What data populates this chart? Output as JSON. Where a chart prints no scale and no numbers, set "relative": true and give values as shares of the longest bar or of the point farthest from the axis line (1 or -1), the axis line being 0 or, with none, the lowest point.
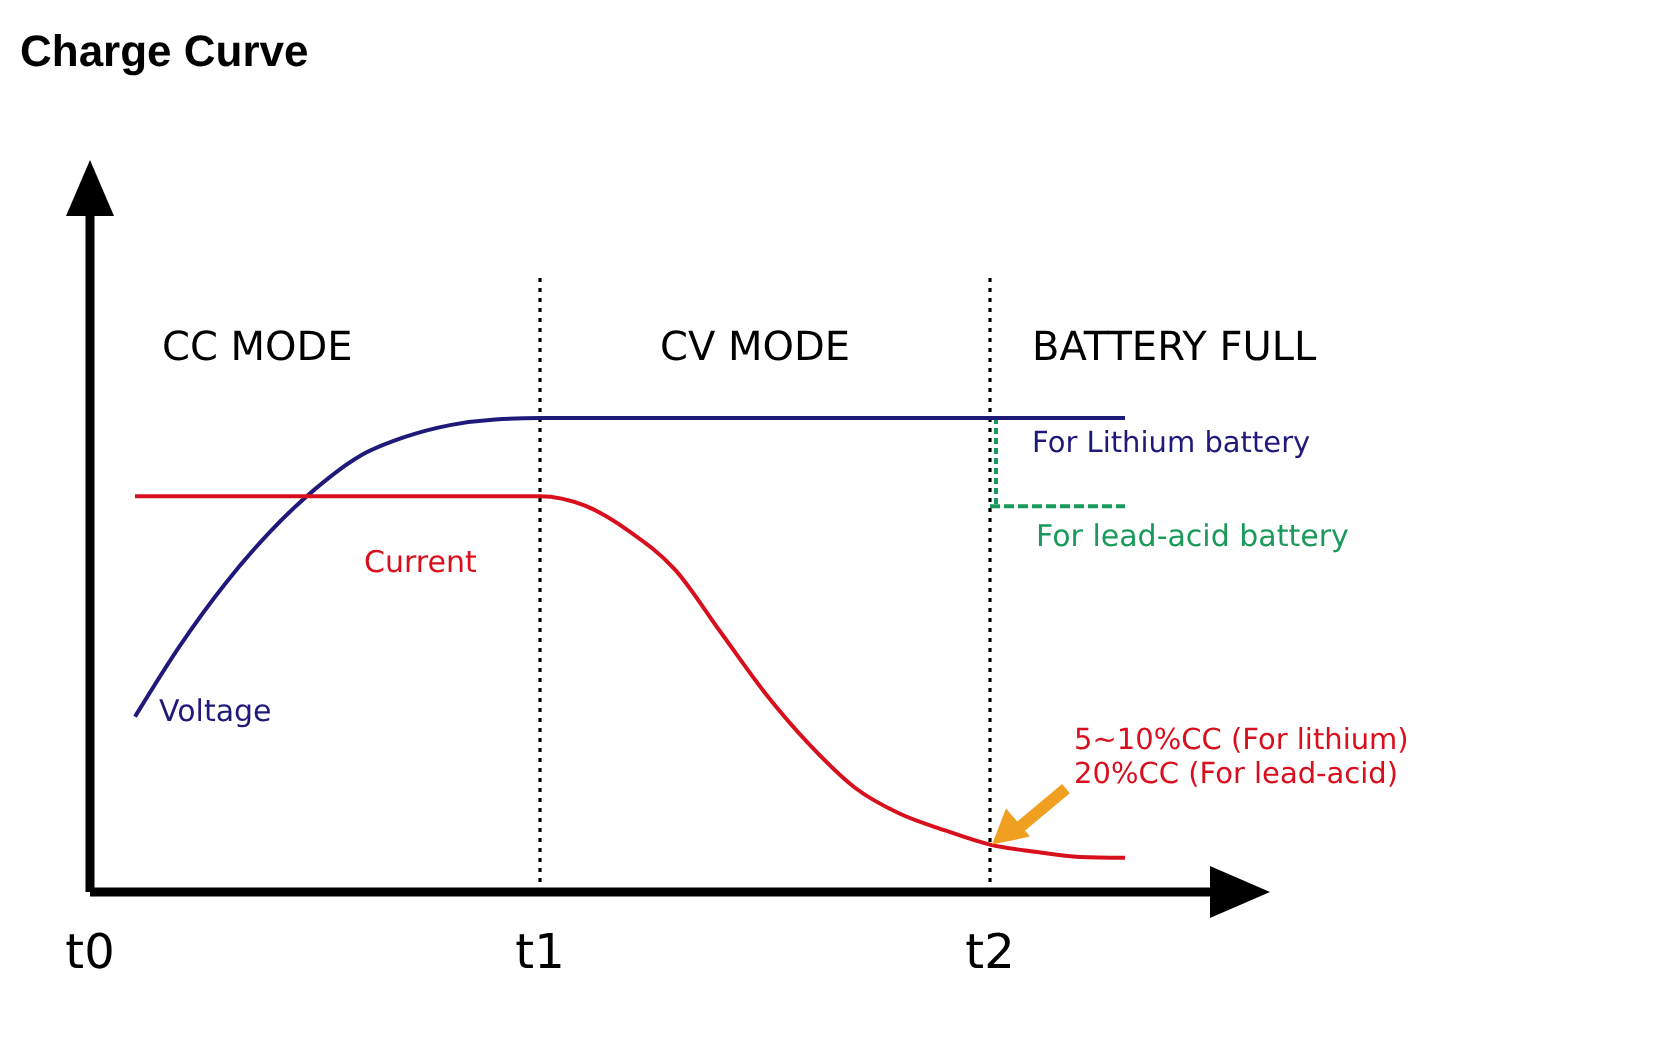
{
  "chart_data": {
    "type": "line",
    "title": "Charge Curve",
    "relative": true,
    "categories": [
      "t0",
      null,
      null,
      null,
      null,
      null,
      null,
      null,
      null,
      null,
      "t1",
      null,
      null,
      null,
      null,
      null,
      null,
      null,
      null,
      null,
      "t2",
      null,
      null,
      null,
      null,
      null,
      null
    ],
    "tick_labels": "x",
    "grid": "x",
    "marker": "none",
    "line_style": "solid",
    "series": [
      {
        "name": "Voltage",
        "color": "#1f1a7a",
        "values": [
          null,
          0.37,
          0.52,
          0.65,
          0.76,
          0.85,
          0.92,
          0.96,
          0.985,
          0.997,
          1,
          1,
          1,
          1,
          1,
          1,
          1,
          1,
          1,
          1,
          1,
          1,
          1,
          1,
          null,
          null,
          null
        ]
      },
      {
        "name": "Current",
        "color": "#d8101e",
        "values": [
          null,
          0.835,
          0.835,
          0.835,
          0.835,
          0.835,
          0.835,
          0.835,
          0.835,
          0.835,
          0.835,
          0.815,
          0.76,
          0.68,
          0.55,
          0.42,
          0.31,
          0.22,
          0.165,
          0.13,
          0.1,
          0.085,
          0.074,
          0.072,
          null,
          null,
          null
        ]
      },
      {
        "name": "For lead-acid battery",
        "color": "#1a9a5a",
        "line_style": "dashed",
        "values": [
          null,
          null,
          null,
          null,
          null,
          null,
          null,
          null,
          null,
          null,
          null,
          null,
          null,
          null,
          null,
          null,
          null,
          null,
          null,
          null,
          0.814,
          0.814,
          0.814,
          0.814,
          null,
          null,
          null
        ]
      }
    ],
    "annotations": [
      "CC MODE",
      "CV MODE",
      "BATTERY FULL",
      "For Lithium battery",
      "5~10%CC (For lithium)\n20%CC (For lead-acid)"
    ]
  }
}
